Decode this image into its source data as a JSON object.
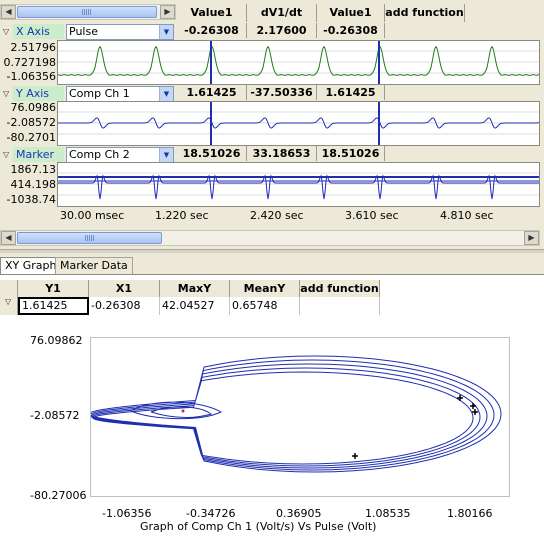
{
  "top_grid": {
    "columns": [
      "Value1",
      "dV1/dt",
      "Value1",
      "add function"
    ],
    "rows": [
      {
        "axis": "X Axis",
        "channel": "Pulse",
        "values": [
          "-0.26308",
          "2.17600",
          "-0.26308"
        ],
        "ticks": [
          "2.51796",
          "0.727198",
          "-1.06356"
        ]
      },
      {
        "axis": "Y Axis",
        "channel": "Comp Ch 1",
        "values": [
          "1.61425",
          "-37.50336",
          "1.61425"
        ],
        "ticks": [
          "76.0986",
          "-2.08572",
          "-80.2701"
        ]
      },
      {
        "axis": "Marker",
        "channel": "Comp Ch 2",
        "values": [
          "18.51026",
          "33.18653",
          "18.51026"
        ],
        "ticks": [
          "1867.13",
          "414.198",
          "-1038.74"
        ]
      }
    ],
    "time_ticks": [
      "30.00 msec",
      "1.220 sec",
      "2.420 sec",
      "3.610 sec",
      "4.810 sec"
    ]
  },
  "tabs": [
    "XY Graph",
    "Marker Data"
  ],
  "xy_table": {
    "headers": [
      "Y1",
      "X1",
      "MaxY",
      "MeanY",
      "add function"
    ],
    "values": [
      "1.61425",
      "-0.26308",
      "42.04527",
      "0.65748",
      ""
    ]
  },
  "xy_graph": {
    "y_ticks": [
      "76.09862",
      "-2.08572",
      "-80.27006"
    ],
    "x_ticks": [
      "-1.06356",
      "-0.34726",
      "0.36905",
      "1.08535",
      "1.80166"
    ],
    "caption": "Graph of Comp Ch 1 (Volt/s) Vs Pulse (Volt)"
  },
  "colors": {
    "pulse": "#1f7a1f",
    "comp": "#1f2fb0",
    "cursor": "#1f2fb0",
    "axis_name_bg": "#cbedcb"
  }
}
